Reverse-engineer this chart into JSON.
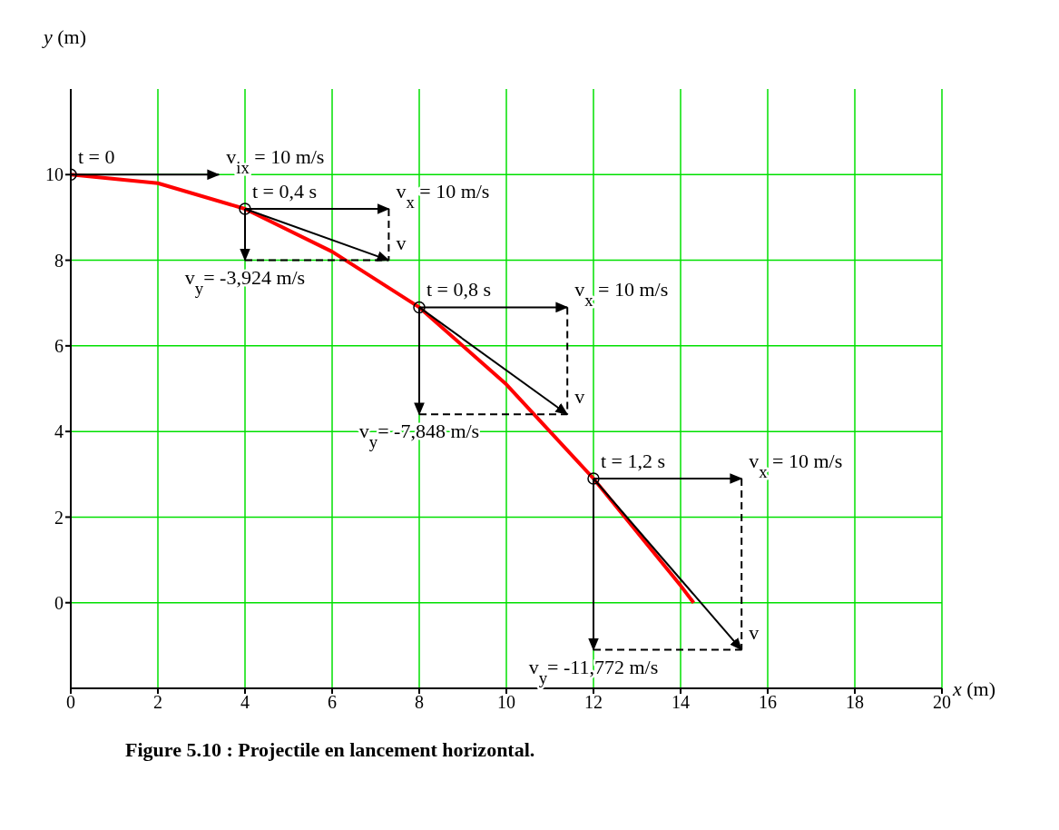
{
  "chart_data": {
    "type": "line",
    "title": "Figure 5.10 : Projectile en lancement horizontal.",
    "xlabel": "x (m)",
    "ylabel": "y (m)",
    "xlim": [
      0,
      20
    ],
    "ylim": [
      -2,
      12
    ],
    "xticks": [
      0,
      2,
      4,
      6,
      8,
      10,
      12,
      14,
      16,
      18,
      20
    ],
    "yticks": [
      0,
      2,
      4,
      6,
      8,
      10
    ],
    "grid": true,
    "annotations": [
      {
        "text": "t = 0",
        "x": 0,
        "y": 10
      },
      {
        "text": "v$_{ix}$ = 10 m/s",
        "x": 3.4,
        "y": 10
      },
      {
        "text": "t = 0,4 s",
        "x": 4,
        "y": 9.2
      },
      {
        "text": "v$_{x}$ = 10 m/s",
        "x": 7.3,
        "y": 9.2
      },
      {
        "text": "v⃗",
        "x": 7.3,
        "y": 8
      },
      {
        "text": "v$_{y}$= -3,924 m/s",
        "x": 4,
        "y": 8
      },
      {
        "text": "t = 0,8 s",
        "x": 8,
        "y": 6.9
      },
      {
        "text": "v$_{x}$ = 10 m/s",
        "x": 11.4,
        "y": 6.9
      },
      {
        "text": "v⃗",
        "x": 11.4,
        "y": 4.4
      },
      {
        "text": "v$_{y}$= -7,848 m/s",
        "x": 8,
        "y": 4.4
      },
      {
        "text": "t = 1,2 s",
        "x": 12,
        "y": 2.9
      },
      {
        "text": "v$_{x}$ = 10 m/s",
        "x": 15.4,
        "y": 2.9
      },
      {
        "text": "v$_{y}$= -11,772 m/s",
        "x": 12,
        "y": -1.1
      },
      {
        "text": "v⃗",
        "x": 15.4,
        "y": -1.1
      }
    ],
    "series": [
      {
        "color": "#ff0000",
        "marker": "none",
        "x": [
          0,
          2,
          4,
          6,
          8,
          10,
          12,
          14,
          14.3
        ],
        "values": [
          10,
          9.8,
          9.2,
          8.2,
          6.9,
          5.1,
          2.9,
          0.4,
          0
        ]
      },
      {
        "type": "scatter",
        "color": "#000000",
        "marker": "circle",
        "x": [
          0,
          4,
          8,
          12
        ],
        "values": [
          10,
          9.2,
          6.9,
          2.9
        ]
      },
      {
        "color": "#000000",
        "x": [
          0,
          3.4
        ],
        "values": [
          10,
          10
        ]
      },
      {
        "color": "#000000",
        "x": [
          4,
          7.3
        ],
        "values": [
          9.2,
          9.2
        ]
      },
      {
        "color": "#000000",
        "x": [
          4,
          4
        ],
        "values": [
          9.2,
          8
        ]
      },
      {
        "color": "#000000",
        "x": [
          4,
          7.3
        ],
        "values": [
          9.2,
          8
        ]
      },
      {
        "color": "#000000",
        "x": [
          8,
          11.4
        ],
        "values": [
          6.9,
          6.9
        ]
      },
      {
        "color": "#000000",
        "x": [
          8,
          8
        ],
        "values": [
          6.9,
          4.4
        ]
      },
      {
        "color": "#000000",
        "x": [
          8,
          11.4
        ],
        "values": [
          6.9,
          4.4
        ]
      },
      {
        "color": "#000000",
        "x": [
          12,
          15.4
        ],
        "values": [
          2.9,
          2.9
        ]
      },
      {
        "color": "#000000",
        "x": [
          12,
          12
        ],
        "values": [
          2.9,
          -1.1
        ]
      },
      {
        "color": "#000000",
        "x": [
          12,
          15.4
        ],
        "values": [
          2.9,
          -1.1
        ]
      },
      {
        "color": "#000000",
        "marker": "none",
        "line_style": "dashed",
        "x": [
          7.3,
          7.3
        ],
        "values": [
          9.2,
          8
        ]
      },
      {
        "color": "#000000",
        "marker": "none",
        "line_style": "dashed",
        "x": [
          4,
          7.3
        ],
        "values": [
          8,
          8
        ]
      },
      {
        "color": "#000000",
        "marker": "none",
        "line_style": "dashed",
        "x": [
          11.4,
          11.4
        ],
        "values": [
          6.9,
          4.4
        ]
      },
      {
        "color": "#000000",
        "marker": "none",
        "line_style": "dashed",
        "x": [
          8,
          11.4
        ],
        "values": [
          4.4,
          4.4
        ]
      },
      {
        "color": "#000000",
        "marker": "none",
        "line_style": "dashed",
        "x": [
          15.4,
          15.4
        ],
        "values": [
          2.9,
          -1.1
        ]
      },
      {
        "color": "#000000",
        "marker": "none",
        "line_style": "dashed",
        "x": [
          12,
          15.4
        ],
        "values": [
          -1.1,
          -1.1
        ]
      }
    ]
  }
}
